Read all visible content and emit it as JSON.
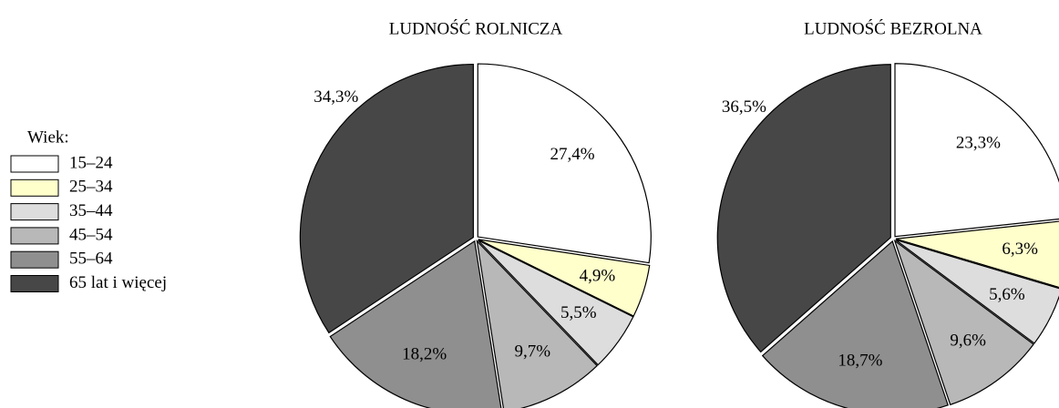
{
  "legend": {
    "title": "Wiek:",
    "labels": [
      "15–24",
      "25–34",
      "35–44",
      "45–54",
      "55–64",
      "65 lat i więcej"
    ],
    "colors": [
      "#ffffff",
      "#ffffcc",
      "#dddddd",
      "#b8b8b8",
      "#8f8f8f",
      "#474747"
    ]
  },
  "chart_data": [
    {
      "type": "pie",
      "title": "LUDNOŚĆ ROLNICZA",
      "values": [
        27.4,
        4.9,
        5.5,
        9.7,
        18.2,
        34.3
      ],
      "value_labels": [
        "27,4%",
        "4,9%",
        "5,5%",
        "9,7%",
        "18,2%",
        "34,3%"
      ]
    },
    {
      "type": "pie",
      "title": "LUDNOŚĆ BEZROLNA",
      "values": [
        23.3,
        6.3,
        5.6,
        9.6,
        18.7,
        36.5
      ],
      "value_labels": [
        "23,3%",
        "6,3%",
        "5,6%",
        "9,6%",
        "18,7%",
        "36,5%"
      ]
    }
  ]
}
